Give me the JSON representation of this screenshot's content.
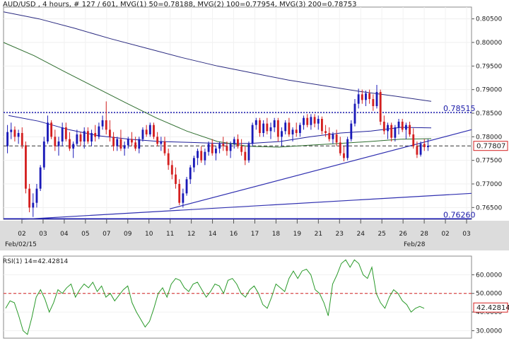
{
  "header": {
    "title": "AUD/USD , 4 hours, # 127 / 601, MVG(1) 50=0.78188, MVG(2) 100=0.77954, MVG(3) 200=0.78753"
  },
  "colors": {
    "bull_candle": "#1a1ab8",
    "bear_candle": "#d42020",
    "mvg50": "#1e1e9a",
    "mvg100": "#2f6e2f",
    "mvg200": "#2a2a80",
    "trendline": "#3030b0",
    "hline": "#1a1ab0",
    "rsi_line": "#2a9a2a",
    "rsi_level": "#d42020",
    "price_marker": "#d42020"
  },
  "chart_data": [
    {
      "type": "candlestick",
      "symbol": "AUD/USD",
      "timeframe": "4 hours",
      "x_tick_labels": [
        "02",
        "03",
        "04",
        "05",
        "07",
        "09",
        "10",
        "11",
        "12",
        "14",
        "16",
        "17",
        "18",
        "19",
        "21",
        "23",
        "24",
        "25",
        "26",
        "28",
        "02",
        "03"
      ],
      "x_date_labels": [
        "Feb/02/15",
        "Feb/28"
      ],
      "y_tick_labels": [
        "0.80500",
        "0.80000",
        "0.79500",
        "0.79000",
        "0.78500",
        "0.78000",
        "0.77500",
        "0.77000",
        "0.76500"
      ],
      "ylim": [
        0.7625,
        0.8075
      ],
      "last_price_label": "0.77807",
      "last_price": 0.77807,
      "horizontal_levels": [
        {
          "label": "0.78515",
          "value": 0.78515
        },
        {
          "label": "0.76260",
          "value": 0.7626
        }
      ],
      "ohlc": [
        [
          0.778,
          0.7825,
          0.7765,
          0.781
        ],
        [
          0.781,
          0.783,
          0.7795,
          0.7815
        ],
        [
          0.7815,
          0.7822,
          0.779,
          0.78
        ],
        [
          0.78,
          0.7815,
          0.7785,
          0.7808
        ],
        [
          0.7808,
          0.782,
          0.7775,
          0.7782
        ],
        [
          0.7782,
          0.779,
          0.768,
          0.769
        ],
        [
          0.769,
          0.77,
          0.764,
          0.765
        ],
        [
          0.765,
          0.768,
          0.763,
          0.766
        ],
        [
          0.766,
          0.77,
          0.765,
          0.769
        ],
        [
          0.769,
          0.774,
          0.7685,
          0.7735
        ],
        [
          0.7735,
          0.78,
          0.773,
          0.779
        ],
        [
          0.779,
          0.7845,
          0.7785,
          0.783
        ],
        [
          0.783,
          0.7835,
          0.7795,
          0.78
        ],
        [
          0.78,
          0.7815,
          0.777,
          0.778
        ],
        [
          0.778,
          0.78,
          0.776,
          0.779
        ],
        [
          0.779,
          0.783,
          0.778,
          0.782
        ],
        [
          0.782,
          0.783,
          0.779,
          0.7795
        ],
        [
          0.7795,
          0.781,
          0.777,
          0.7775
        ],
        [
          0.7775,
          0.779,
          0.7755,
          0.7785
        ],
        [
          0.7785,
          0.7815,
          0.778,
          0.7805
        ],
        [
          0.7805,
          0.781,
          0.778,
          0.779
        ],
        [
          0.779,
          0.782,
          0.7775,
          0.7812
        ],
        [
          0.7812,
          0.782,
          0.7785,
          0.779
        ],
        [
          0.779,
          0.7815,
          0.778,
          0.7808
        ],
        [
          0.7808,
          0.7825,
          0.779,
          0.78
        ],
        [
          0.78,
          0.783,
          0.7795,
          0.7822
        ],
        [
          0.7822,
          0.7845,
          0.7815,
          0.7835
        ],
        [
          0.7835,
          0.7875,
          0.7805,
          0.7815
        ],
        [
          0.7815,
          0.7835,
          0.779,
          0.78
        ],
        [
          0.78,
          0.781,
          0.777,
          0.778
        ],
        [
          0.778,
          0.78,
          0.777,
          0.7795
        ],
        [
          0.7795,
          0.7815,
          0.777,
          0.7775
        ],
        [
          0.7775,
          0.779,
          0.776,
          0.7782
        ],
        [
          0.7782,
          0.78,
          0.7775,
          0.7795
        ],
        [
          0.7795,
          0.781,
          0.778,
          0.7788
        ],
        [
          0.7788,
          0.78,
          0.777,
          0.7775
        ],
        [
          0.7775,
          0.78,
          0.7765,
          0.7795
        ],
        [
          0.7795,
          0.782,
          0.779,
          0.7815
        ],
        [
          0.7815,
          0.7825,
          0.78,
          0.7805
        ],
        [
          0.7805,
          0.783,
          0.78,
          0.7825
        ],
        [
          0.7825,
          0.783,
          0.7795,
          0.78
        ],
        [
          0.78,
          0.781,
          0.778,
          0.7785
        ],
        [
          0.7785,
          0.78,
          0.777,
          0.779
        ],
        [
          0.779,
          0.78,
          0.776,
          0.7765
        ],
        [
          0.7765,
          0.7775,
          0.773,
          0.774
        ],
        [
          0.774,
          0.775,
          0.771,
          0.772
        ],
        [
          0.772,
          0.7735,
          0.769,
          0.77
        ],
        [
          0.77,
          0.771,
          0.7655,
          0.766
        ],
        [
          0.766,
          0.769,
          0.765,
          0.768
        ],
        [
          0.768,
          0.7715,
          0.7675,
          0.771
        ],
        [
          0.771,
          0.774,
          0.77,
          0.7735
        ],
        [
          0.7735,
          0.776,
          0.7725,
          0.7755
        ],
        [
          0.7755,
          0.7775,
          0.774,
          0.777
        ],
        [
          0.777,
          0.778,
          0.7745,
          0.775
        ],
        [
          0.775,
          0.7775,
          0.774,
          0.7768
        ],
        [
          0.7768,
          0.779,
          0.776,
          0.7785
        ],
        [
          0.7785,
          0.7795,
          0.776,
          0.7765
        ],
        [
          0.7765,
          0.778,
          0.775,
          0.7775
        ],
        [
          0.7775,
          0.779,
          0.7765,
          0.7785
        ],
        [
          0.7785,
          0.78,
          0.777,
          0.778
        ],
        [
          0.778,
          0.779,
          0.776,
          0.777
        ],
        [
          0.777,
          0.779,
          0.7755,
          0.7785
        ],
        [
          0.7785,
          0.78,
          0.7775,
          0.7795
        ],
        [
          0.7795,
          0.7805,
          0.7775,
          0.778
        ],
        [
          0.778,
          0.7795,
          0.776,
          0.7768
        ],
        [
          0.7768,
          0.778,
          0.774,
          0.775
        ],
        [
          0.775,
          0.779,
          0.7745,
          0.7785
        ],
        [
          0.7785,
          0.783,
          0.778,
          0.7825
        ],
        [
          0.7825,
          0.784,
          0.7815,
          0.7835
        ],
        [
          0.7835,
          0.784,
          0.78,
          0.7808
        ],
        [
          0.7808,
          0.7835,
          0.78,
          0.7828
        ],
        [
          0.7828,
          0.784,
          0.7805,
          0.7812
        ],
        [
          0.7812,
          0.783,
          0.7795,
          0.782
        ],
        [
          0.782,
          0.784,
          0.781,
          0.7835
        ],
        [
          0.7835,
          0.784,
          0.779,
          0.78
        ],
        [
          0.78,
          0.782,
          0.778,
          0.7812
        ],
        [
          0.7812,
          0.7835,
          0.7805,
          0.783
        ],
        [
          0.783,
          0.784,
          0.78,
          0.7805
        ],
        [
          0.7805,
          0.782,
          0.779,
          0.7815
        ],
        [
          0.7815,
          0.783,
          0.78,
          0.7808
        ],
        [
          0.7808,
          0.783,
          0.78,
          0.7825
        ],
        [
          0.7825,
          0.7845,
          0.7815,
          0.784
        ],
        [
          0.784,
          0.7848,
          0.782,
          0.7825
        ],
        [
          0.7825,
          0.7848,
          0.7815,
          0.7842
        ],
        [
          0.7842,
          0.7848,
          0.782,
          0.7828
        ],
        [
          0.7828,
          0.7845,
          0.7815,
          0.7838
        ],
        [
          0.7838,
          0.7843,
          0.7805,
          0.7812
        ],
        [
          0.7812,
          0.7825,
          0.78,
          0.7808
        ],
        [
          0.7808,
          0.782,
          0.779,
          0.7795
        ],
        [
          0.7795,
          0.781,
          0.7785,
          0.7805
        ],
        [
          0.7805,
          0.7815,
          0.778,
          0.7788
        ],
        [
          0.7788,
          0.78,
          0.776,
          0.7765
        ],
        [
          0.7765,
          0.778,
          0.7748,
          0.7755
        ],
        [
          0.7755,
          0.78,
          0.775,
          0.7795
        ],
        [
          0.7795,
          0.7835,
          0.779,
          0.7828
        ],
        [
          0.7828,
          0.788,
          0.7822,
          0.787
        ],
        [
          0.787,
          0.7902,
          0.786,
          0.789
        ],
        [
          0.789,
          0.79,
          0.787,
          0.7878
        ],
        [
          0.7878,
          0.7898,
          0.7865,
          0.7892
        ],
        [
          0.7892,
          0.79,
          0.787,
          0.788
        ],
        [
          0.788,
          0.789,
          0.7855,
          0.7865
        ],
        [
          0.7865,
          0.791,
          0.786,
          0.7895
        ],
        [
          0.7895,
          0.79,
          0.7825,
          0.7832
        ],
        [
          0.7832,
          0.7845,
          0.7805,
          0.7812
        ],
        [
          0.7812,
          0.783,
          0.7795,
          0.7825
        ],
        [
          0.7825,
          0.783,
          0.779,
          0.7798
        ],
        [
          0.7798,
          0.7825,
          0.779,
          0.782
        ],
        [
          0.782,
          0.7838,
          0.7805,
          0.7832
        ],
        [
          0.7832,
          0.7838,
          0.781,
          0.7815
        ],
        [
          0.7815,
          0.783,
          0.7795,
          0.7825
        ],
        [
          0.7825,
          0.7832,
          0.78,
          0.7805
        ],
        [
          0.7805,
          0.7818,
          0.7775,
          0.778
        ],
        [
          0.778,
          0.779,
          0.7755,
          0.7762
        ],
        [
          0.7762,
          0.779,
          0.7758,
          0.7785
        ],
        [
          0.7785,
          0.7795,
          0.777,
          0.7778
        ],
        [
          0.7778,
          0.7795,
          0.777,
          0.7781
        ]
      ],
      "series": [
        {
          "name": "MVG(1) 50",
          "last_value": 0.78188,
          "values": [
            0.7845,
            0.7833,
            0.7815,
            0.7802,
            0.7795,
            0.779,
            0.7788,
            0.7786,
            0.7786,
            0.779,
            0.78,
            0.7808,
            0.7812,
            0.782,
            0.7819
          ]
        },
        {
          "name": "MVG(2) 100",
          "last_value": 0.77954,
          "values": [
            0.8,
            0.7972,
            0.7938,
            0.7905,
            0.7872,
            0.784,
            0.7812,
            0.779,
            0.778,
            0.7778,
            0.7782,
            0.7786,
            0.779,
            0.7795,
            0.7796
          ]
        },
        {
          "name": "MVG(3) 200",
          "last_value": 0.78753,
          "values": [
            0.8065,
            0.805,
            0.803,
            0.8008,
            0.7988,
            0.7968,
            0.795,
            0.7935,
            0.792,
            0.7908,
            0.7896,
            0.7886,
            0.7875
          ]
        }
      ],
      "trendlines": [
        {
          "points": [
            [
              11,
              0.7647
            ],
            [
              31,
              0.781
            ]
          ]
        },
        {
          "points": [
            [
              2,
              0.7625
            ],
            [
              33,
              0.768
            ]
          ]
        }
      ]
    },
    {
      "type": "line",
      "title": "RSI(1) 14=42.42814",
      "y_tick_labels": [
        "60.0000",
        "50.0000",
        "40.0000",
        "30.0000"
      ],
      "ylim": [
        26,
        70
      ],
      "last_value_label": "42.42814",
      "level": 50,
      "values": [
        42,
        46,
        45,
        38,
        30,
        28,
        37,
        48,
        52,
        47,
        40,
        45,
        52,
        50,
        53,
        55,
        48,
        52,
        55,
        53,
        56,
        51,
        54,
        48,
        50,
        46,
        49,
        52,
        54,
        45,
        40,
        36,
        32,
        35,
        42,
        50,
        53,
        48,
        55,
        58,
        57,
        53,
        51,
        55,
        56,
        52,
        48,
        51,
        55,
        54,
        50,
        57,
        58,
        55,
        50,
        48,
        52,
        54,
        50,
        44,
        42,
        48,
        55,
        53,
        51,
        58,
        62,
        58,
        62,
        63,
        60,
        52,
        50,
        45,
        38,
        55,
        60,
        66,
        68,
        64,
        68,
        66,
        60,
        58,
        64,
        50,
        45,
        42,
        48,
        52,
        50,
        46,
        44,
        40,
        42,
        43,
        42
      ]
    }
  ]
}
